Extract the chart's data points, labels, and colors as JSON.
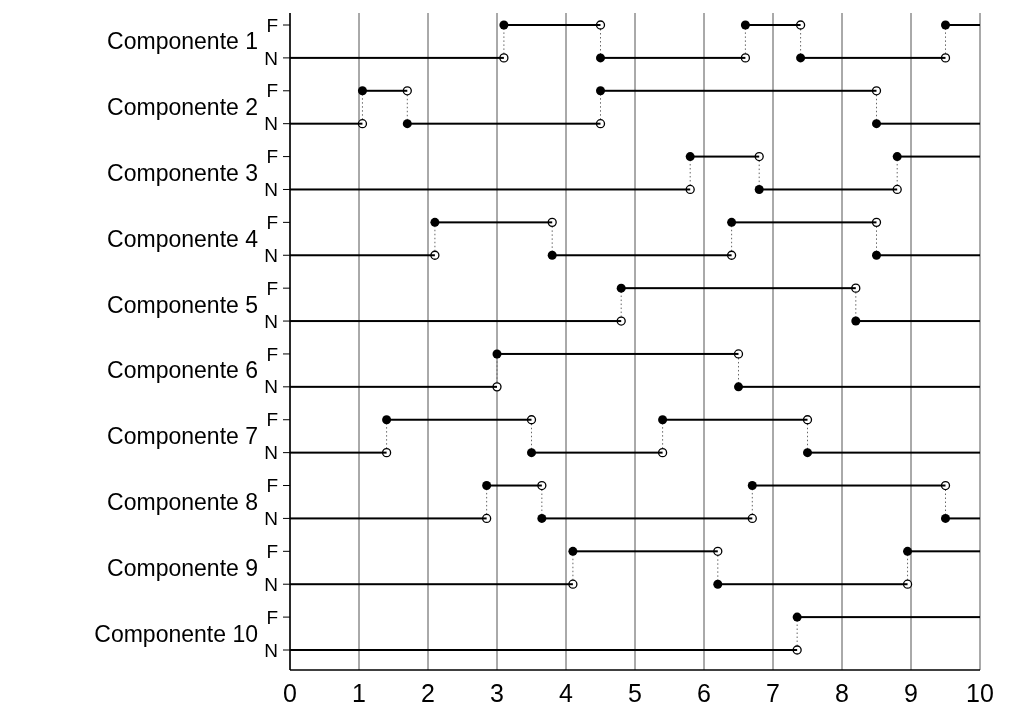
{
  "chart_data": {
    "type": "bar",
    "orientation": "horizontal",
    "categories": [
      "F",
      "N",
      "F",
      "N",
      "F",
      "N",
      "F",
      "N",
      "F",
      "N",
      "F",
      "N",
      "F",
      "N",
      "F",
      "N",
      "F",
      "N",
      "F",
      "N"
    ],
    "annotations": [
      "Componente 1",
      "Componente 2",
      "Componente 3",
      "Componente 4",
      "Componente 5",
      "Componente 6",
      "Componente 7",
      "Componente 8",
      "Componente 9",
      "Componente 10"
    ],
    "series": [
      {
        "color": "#000000",
        "base": [
          3.1,
          0,
          1.05,
          0,
          5.8,
          0,
          2.1,
          0,
          4.8,
          0,
          3.0,
          0,
          1.4,
          0,
          2.85,
          0,
          4.1,
          0,
          7.35,
          0
        ],
        "values": [
          1.4,
          3.1,
          0.65,
          1.05,
          1.0,
          5.8,
          1.7,
          2.1,
          3.4,
          4.8,
          3.5,
          3.0,
          2.1,
          1.4,
          0.8,
          2.85,
          2.1,
          4.1,
          2.65,
          7.35
        ]
      },
      {
        "color": "#000000",
        "base": [
          6.6,
          4.5,
          4.5,
          1.7,
          8.8,
          6.8,
          6.4,
          3.8,
          null,
          8.2,
          null,
          6.5,
          5.4,
          3.5,
          6.7,
          3.65,
          8.95,
          6.2,
          null,
          null
        ],
        "values": [
          0.8,
          2.1,
          4.0,
          2.8,
          1.2,
          2.0,
          2.1,
          2.6,
          null,
          1.8,
          null,
          3.5,
          2.1,
          1.9,
          2.8,
          3.05,
          1.05,
          2.75,
          null,
          null
        ]
      },
      {
        "color": "#000000",
        "base": [
          9.5,
          7.4,
          null,
          8.5,
          null,
          null,
          null,
          8.5,
          null,
          null,
          null,
          null,
          null,
          7.5,
          null,
          9.5,
          null,
          null,
          null,
          null
        ],
        "values": [
          0.5,
          2.1,
          null,
          1.5,
          null,
          null,
          null,
          1.5,
          null,
          null,
          null,
          null,
          null,
          2.5,
          null,
          0.5,
          null,
          null,
          null,
          null
        ]
      }
    ],
    "xlim": [
      0,
      10
    ],
    "xticks": [
      0,
      1,
      2,
      3,
      4,
      5,
      6,
      7,
      8,
      9,
      10
    ],
    "grid": "x",
    "marker": "circle"
  }
}
